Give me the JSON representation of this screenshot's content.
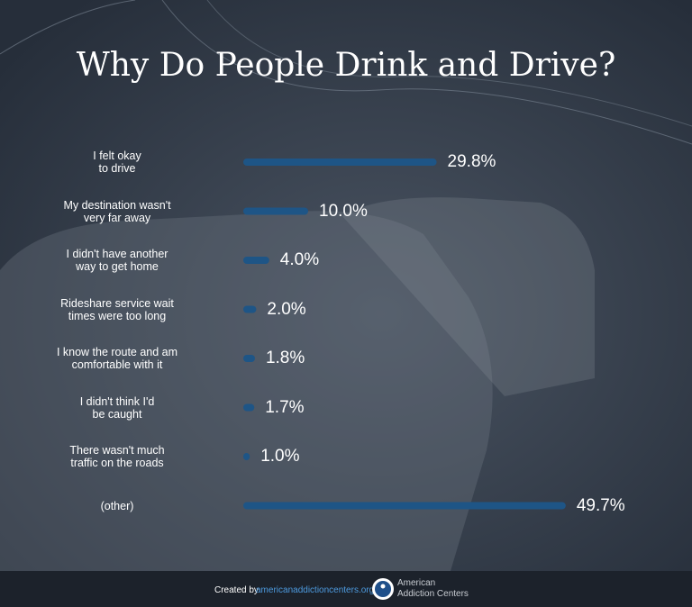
{
  "chart_data": {
    "type": "barh",
    "title": "Why Do People Drink and Drive?",
    "categories": [
      "I felt okay\nto drive",
      "My destination wasn't\nvery far away",
      "I didn't have another\nway to get home",
      "Rideshare service wait\ntimes were too long",
      "I know the route and am\ncomfortable with it",
      "I didn't think I'd\nbe caught",
      "There wasn't much\ntraffic on the roads",
      "(other)"
    ],
    "values": [
      29.8,
      10.0,
      4.0,
      2.0,
      1.8,
      1.7,
      1.0,
      49.7
    ],
    "value_labels": [
      "29.8%",
      "10.0%",
      "4.0%",
      "2.0%",
      "1.8%",
      "1.7%",
      "1.0%",
      "49.7%"
    ],
    "color": "#1e5586"
  },
  "footer": {
    "created_by": "Created by",
    "site": "americanaddictioncenters.org",
    "brand_line1": "American",
    "brand_line2": "Addiction Centers"
  }
}
